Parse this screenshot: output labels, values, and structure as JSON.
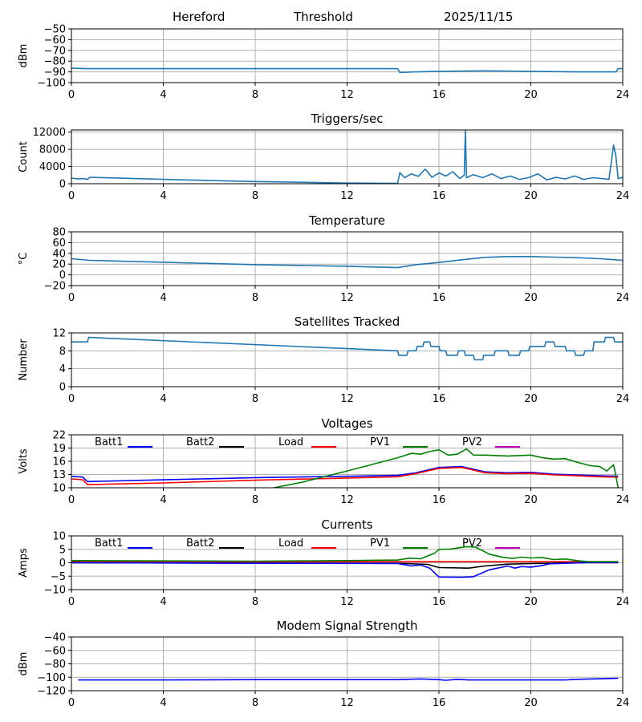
{
  "header": {
    "station": "Hereford",
    "mode": "Threshold",
    "date": "2025/11/15"
  },
  "colors": {
    "series": "#1f77b4",
    "grid": "#b0b0b0",
    "batt1": "#0000ff",
    "batt2": "#000000",
    "load": "#ff0000",
    "pv1": "#008000",
    "pv2": "#bf00bf"
  },
  "chart_data": [
    {
      "type": "line",
      "title": "",
      "ylabel": "dBm",
      "xlabel": "",
      "xlim": [
        0,
        24
      ],
      "xticks": [
        0,
        4,
        8,
        12,
        16,
        20,
        24
      ],
      "ylim": [
        -100,
        -50
      ],
      "yticks": [
        -100,
        -90,
        -80,
        -70,
        -60,
        -50
      ],
      "tick_labels": [
        "−100",
        "−90",
        "−80",
        "−70",
        "−60",
        "−50"
      ],
      "series": [
        {
          "name": "Threshold",
          "color": "#1f77b4",
          "x": [
            0,
            0.6,
            14.2,
            14.3,
            15,
            16,
            18,
            20,
            22,
            23.7,
            23.8,
            24
          ],
          "y": [
            -86.5,
            -87,
            -87,
            -90.5,
            -90,
            -89.5,
            -89,
            -89.5,
            -90,
            -90,
            -87,
            -87
          ]
        }
      ]
    },
    {
      "type": "line",
      "title": "Triggers/sec",
      "ylabel": "Count",
      "xlabel": "",
      "xlim": [
        0,
        24
      ],
      "xticks": [
        0,
        4,
        8,
        12,
        16,
        20,
        24
      ],
      "ylim": [
        0,
        12500
      ],
      "yticks": [
        0,
        4000,
        8000,
        12000
      ],
      "tick_labels": [
        "0",
        "4000",
        "8000",
        "12000"
      ],
      "series": [
        {
          "name": "Triggers",
          "color": "#1f77b4",
          "x": [
            0,
            0.3,
            0.5,
            0.7,
            0.8,
            4,
            8,
            12,
            14.2,
            14.3,
            14.5,
            14.8,
            15.1,
            15.4,
            15.7,
            16,
            16.3,
            16.6,
            16.9,
            17.1,
            17.15,
            17.2,
            17.5,
            17.9,
            18.3,
            18.7,
            19.1,
            19.5,
            19.9,
            20.3,
            20.7,
            21.1,
            21.5,
            21.9,
            22.3,
            22.7,
            23.1,
            23.4,
            23.6,
            23.7,
            23.8,
            24
          ],
          "y": [
            1300,
            1100,
            1200,
            1000,
            1500,
            1000,
            500,
            150,
            100,
            2600,
            1400,
            2300,
            1700,
            3400,
            1500,
            2500,
            1800,
            2800,
            1200,
            2000,
            12500,
            1400,
            2100,
            1400,
            2300,
            1200,
            1800,
            1000,
            1400,
            2300,
            900,
            1500,
            1100,
            1800,
            1000,
            1400,
            1200,
            1000,
            9000,
            6500,
            1200,
            1500
          ]
        }
      ]
    },
    {
      "type": "line",
      "title": "Temperature",
      "ylabel": "°C",
      "xlabel": "",
      "xlim": [
        0,
        24
      ],
      "xticks": [
        0,
        4,
        8,
        12,
        16,
        20,
        24
      ],
      "ylim": [
        -20,
        80
      ],
      "yticks": [
        -20,
        0,
        20,
        40,
        60,
        80
      ],
      "tick_labels": [
        "−20",
        "0",
        "20",
        "40",
        "60",
        "80"
      ],
      "series": [
        {
          "name": "Temperature",
          "color": "#1f77b4",
          "x": [
            0,
            0.8,
            4,
            8,
            12,
            14.2,
            15,
            16,
            17,
            18,
            19,
            20,
            21,
            22,
            23,
            24
          ],
          "y": [
            30,
            27,
            23.5,
            19,
            16,
            13.5,
            19,
            23,
            28,
            32.5,
            34,
            34,
            33,
            32,
            30,
            27
          ]
        }
      ]
    },
    {
      "type": "line",
      "title": "Satellites Tracked",
      "ylabel": "Number",
      "xlabel": "",
      "xlim": [
        0,
        24
      ],
      "xticks": [
        0,
        4,
        8,
        12,
        16,
        20,
        24
      ],
      "ylim": [
        0,
        12
      ],
      "yticks": [
        0,
        4,
        8,
        12
      ],
      "tick_labels": [
        "0",
        "4",
        "8",
        "12"
      ],
      "series": [
        {
          "name": "Satellites",
          "color": "#1f77b4",
          "x": [
            0,
            0.7,
            0.75,
            14.2,
            14.25,
            14.6,
            14.65,
            15.0,
            15.05,
            15.3,
            15.35,
            15.6,
            15.65,
            16.0,
            16.05,
            16.3,
            16.35,
            16.8,
            16.85,
            17.1,
            17.15,
            17.5,
            17.55,
            17.9,
            17.95,
            18.4,
            18.45,
            19.0,
            19.05,
            19.5,
            19.55,
            19.9,
            19.95,
            20.6,
            20.65,
            21.0,
            21.05,
            21.5,
            21.55,
            21.9,
            21.95,
            22.3,
            22.35,
            22.7,
            22.75,
            23.2,
            23.25,
            23.6,
            23.65,
            24
          ],
          "y": [
            10,
            10,
            11,
            8,
            7,
            7,
            8,
            8,
            9,
            9,
            10,
            10,
            9,
            9,
            8,
            8,
            7,
            7,
            8,
            8,
            7,
            7,
            6,
            6,
            7,
            7,
            8,
            8,
            7,
            7,
            8,
            8,
            9,
            9,
            10,
            10,
            9,
            9,
            8,
            8,
            7,
            7,
            8,
            8,
            10,
            10,
            11,
            11,
            10,
            10
          ]
        }
      ]
    },
    {
      "type": "line",
      "title": "Voltages",
      "ylabel": "Volts",
      "xlabel": "",
      "xlim": [
        0,
        24
      ],
      "xticks": [
        0,
        4,
        8,
        12,
        16,
        20,
        24
      ],
      "ylim": [
        10,
        22
      ],
      "yticks": [
        10,
        13,
        16,
        19,
        22
      ],
      "tick_labels": [
        "10",
        "13",
        "16",
        "19",
        "22"
      ],
      "legend": [
        "Batt1",
        "Batt2",
        "Load",
        "PV1",
        "PV2"
      ],
      "series": [
        {
          "name": "Batt1",
          "color": "#0000ff",
          "x": [
            0,
            0.5,
            0.7,
            4,
            8,
            12,
            14.2,
            15,
            16,
            17,
            18,
            19,
            20,
            21,
            22,
            23,
            23.8
          ],
          "y": [
            12.6,
            12.4,
            11.4,
            11.8,
            12.3,
            12.6,
            12.8,
            13.4,
            14.6,
            14.8,
            13.6,
            13.4,
            13.5,
            13.1,
            12.9,
            12.7,
            12.6
          ]
        },
        {
          "name": "Load",
          "color": "#ff0000",
          "x": [
            0,
            0.5,
            0.7,
            4,
            8,
            12,
            14.2,
            15,
            16,
            17,
            18,
            19,
            20,
            21,
            22,
            23,
            23.8
          ],
          "y": [
            12.0,
            11.8,
            10.7,
            11.1,
            11.7,
            12.2,
            12.5,
            13.2,
            14.4,
            14.6,
            13.4,
            13.2,
            13.3,
            12.9,
            12.7,
            12.5,
            12.4
          ]
        },
        {
          "name": "PV1",
          "color": "#008000",
          "x": [
            8.8,
            10,
            12,
            14.2,
            14.8,
            15.2,
            15.6,
            16,
            16.4,
            16.8,
            17.2,
            17.5,
            18,
            19,
            20,
            20.5,
            21,
            21.5,
            22,
            22.6,
            23,
            23.3,
            23.6,
            23.8
          ],
          "y": [
            10,
            11.2,
            13.8,
            16.8,
            17.8,
            17.6,
            18.2,
            18.6,
            17.4,
            17.6,
            18.8,
            17.4,
            17.4,
            17.2,
            17.4,
            16.8,
            16.5,
            16.6,
            15.8,
            15.0,
            14.8,
            13.8,
            15.2,
            10
          ]
        }
      ]
    },
    {
      "type": "line",
      "title": "Currents",
      "ylabel": "Amps",
      "xlabel": "",
      "xlim": [
        0,
        24
      ],
      "xticks": [
        0,
        4,
        8,
        12,
        16,
        20,
        24
      ],
      "ylim": [
        -10,
        10
      ],
      "yticks": [
        -10,
        -5,
        0,
        5,
        10
      ],
      "tick_labels": [
        "−10",
        "−5",
        "0",
        "5",
        "10"
      ],
      "legend": [
        "Batt1",
        "Batt2",
        "Load",
        "PV1",
        "PV2"
      ],
      "series": [
        {
          "name": "Load",
          "color": "#ff0000",
          "x": [
            0,
            23.8
          ],
          "y": [
            0.4,
            0.4
          ]
        },
        {
          "name": "Batt2",
          "color": "#000000",
          "x": [
            0,
            14.2,
            15.5,
            16,
            17.3,
            18,
            19,
            20,
            20.7,
            21.5,
            22.5,
            23.8
          ],
          "y": [
            0,
            -0.2,
            -0.6,
            -1.8,
            -2.0,
            -1.2,
            -0.5,
            -0.3,
            -0.2,
            0,
            0,
            0
          ]
        },
        {
          "name": "Batt1",
          "color": "#0000ff",
          "x": [
            0,
            14.2,
            14.8,
            15.2,
            15.6,
            16,
            17,
            17.5,
            18.2,
            19,
            19.3,
            19.6,
            20,
            20.5,
            20.8,
            21.5,
            22.5,
            23.8
          ],
          "y": [
            0,
            -0.3,
            -1.2,
            -0.8,
            -2.0,
            -5.3,
            -5.4,
            -5.2,
            -2.6,
            -1.2,
            -2.0,
            -1.4,
            -1.6,
            -1.0,
            -0.4,
            -0.2,
            0.1,
            0.1
          ]
        },
        {
          "name": "PV1",
          "color": "#008000",
          "x": [
            0,
            8,
            12,
            14.2,
            14.7,
            15.2,
            15.8,
            16,
            16.5,
            17.2,
            17.6,
            18.2,
            18.8,
            19.2,
            19.6,
            20,
            20.5,
            21,
            21.5,
            22,
            22.5,
            23.8
          ],
          "y": [
            0.8,
            0.6,
            0.8,
            1.0,
            1.7,
            1.5,
            3.5,
            5.0,
            5.1,
            6.0,
            5.8,
            3.2,
            2.0,
            1.6,
            2.1,
            1.8,
            1.9,
            1.2,
            1.4,
            0.8,
            0.4,
            0.4
          ]
        }
      ]
    },
    {
      "type": "line",
      "title": "Modem Signal Strength",
      "ylabel": "dBm",
      "xlabel": "",
      "xlim": [
        0,
        24
      ],
      "xticks": [
        0,
        4,
        8,
        12,
        16,
        20,
        24
      ],
      "ylim": [
        -120,
        -40
      ],
      "yticks": [
        -120,
        -100,
        -80,
        -60,
        -40
      ],
      "tick_labels": [
        "−120",
        "−100",
        "−80",
        "−60",
        "−40"
      ],
      "series": [
        {
          "name": "Modem",
          "color": "#0000ff",
          "x": [
            0.3,
            4,
            8,
            12,
            14.2,
            15.2,
            16,
            16.3,
            16.8,
            17.3,
            20,
            21.5,
            22,
            23.8
          ],
          "y": [
            -104,
            -104,
            -103.5,
            -103.5,
            -103.5,
            -102.5,
            -103.5,
            -104.5,
            -103,
            -104,
            -104,
            -104,
            -103,
            -101.5
          ]
        }
      ]
    }
  ]
}
